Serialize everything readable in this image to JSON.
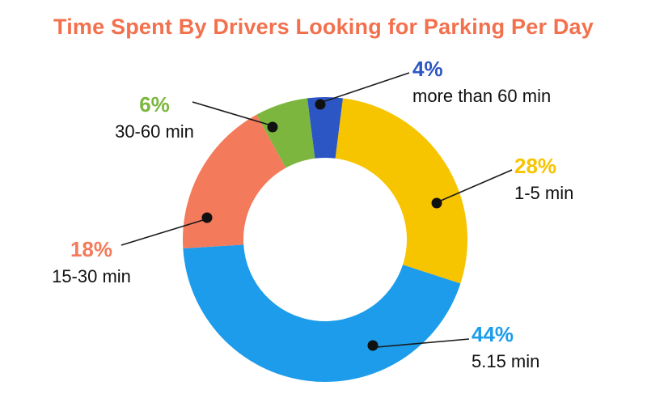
{
  "title": "Time Spent By Drivers Looking for Parking Per Day",
  "title_color": "#F3704D",
  "chart_data": {
    "type": "pie",
    "subtype": "donut",
    "title": "Time Spent By Drivers Looking for Parking Per Day",
    "legend_position": "callouts",
    "total": 100,
    "segments": [
      {
        "label": "more than 60 min",
        "pct": "4%",
        "value": 4,
        "color": "#2D56C5"
      },
      {
        "label": "1-5 min",
        "pct": "28%",
        "value": 28,
        "color": "#F7C400"
      },
      {
        "label": "5.15 min",
        "pct": "44%",
        "value": 44,
        "color": "#1C9CEA"
      },
      {
        "label": "15-30 min",
        "pct": "18%",
        "value": 18,
        "color": "#F47A5C"
      },
      {
        "label": "30-60 min",
        "pct": "6%",
        "value": 6,
        "color": "#7CB63F"
      }
    ]
  }
}
